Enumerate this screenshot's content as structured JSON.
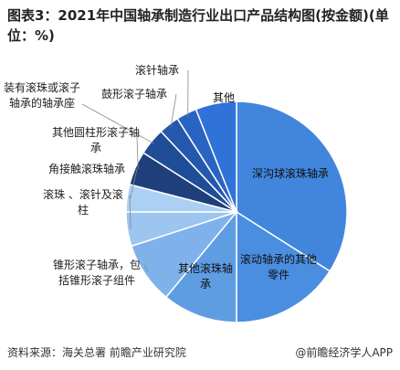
{
  "chart_data": {
    "type": "pie",
    "title": "图表3：2021年中国轴承制造行业出口产品结构图(按金额)(单位：%)",
    "categories": [
      "深沟球滚珠轴承",
      "滚动轴承的其他零件",
      "其他滚珠轴承",
      "锥形滚子轴承，包括锥形滚子组件",
      "滚珠 、滚针及滚柱",
      "角接触滚珠轴承",
      "其他圆柱形滚子轴承",
      "装有滚珠或滚子轴承的轴承座",
      "鼓形滚子轴承",
      "滚针轴承",
      "其他"
    ],
    "values": [
      34,
      16,
      11,
      9,
      5,
      4,
      5,
      4,
      3,
      3,
      6
    ],
    "colors": [
      "#4186dc",
      "#4a8ee0",
      "#5f9de3",
      "#7fb2ea",
      "#9cc5f0",
      "#abd0f3",
      "#1f3f7a",
      "#1f4d98",
      "#2458ad",
      "#2a64c2",
      "#2f73d8"
    ],
    "source": "资料来源：海关总署 前瞻产业研究院",
    "watermark": "@前瞻经济学人APP"
  }
}
